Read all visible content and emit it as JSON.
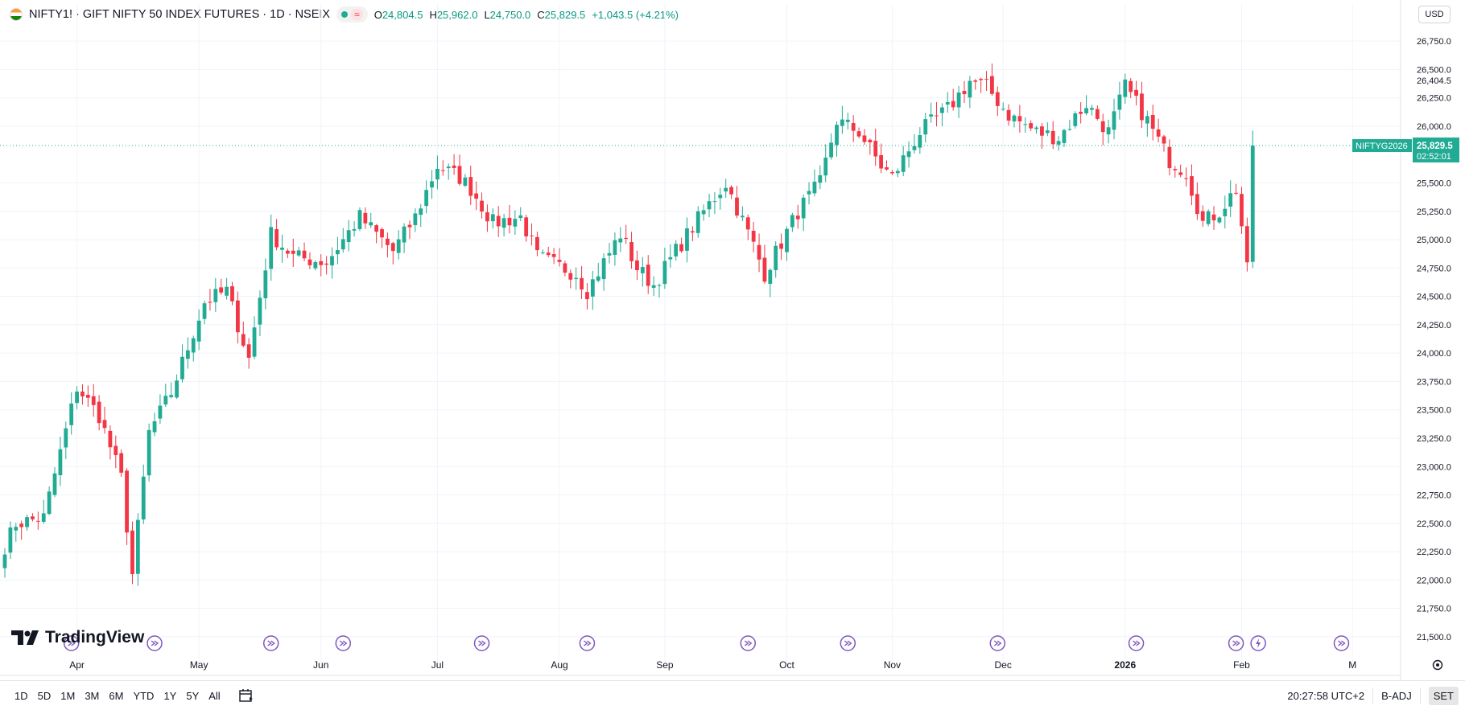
{
  "header": {
    "title": "NIFTY1! · GIFT NIFTY 50 INDEX FUTURES · 1D · NSEIX",
    "wave_symbol": "≈",
    "ohlc": {
      "o_label": "O",
      "o_value": "24,804.5",
      "h_label": "H",
      "h_value": "25,962.0",
      "l_label": "L",
      "l_value": "24,750.0",
      "c_label": "C",
      "c_value": "25,829.5",
      "change": "+1,043.5 (+4.21%)"
    },
    "currency": "USD"
  },
  "colors": {
    "up": "#22ab94",
    "down": "#f23645",
    "grid": "#f0f3fa",
    "axis_text": "#131722",
    "event": "#7e57c2",
    "price_tag": "#22ab94"
  },
  "chart_data": {
    "type": "candlestick",
    "title": "NIFTY1! · GIFT NIFTY 50 INDEX FUTURES · 1D · NSEIX",
    "ylim": [
      21400,
      26900
    ],
    "y_ticks": [
      {
        "value": 26750,
        "label": "26,750.0"
      },
      {
        "value": 26500,
        "label": "26,500.0"
      },
      {
        "value": 26250,
        "label": "26,250.0"
      },
      {
        "value": 26000,
        "label": "26,000.0"
      },
      {
        "value": 25500,
        "label": "25,500.0"
      },
      {
        "value": 25250,
        "label": "25,250.0"
      },
      {
        "value": 25000,
        "label": "25,000.0"
      },
      {
        "value": 24750,
        "label": "24,750.0"
      },
      {
        "value": 24500,
        "label": "24,500.0"
      },
      {
        "value": 24250,
        "label": "24,250.0"
      },
      {
        "value": 24000,
        "label": "24,000.0"
      },
      {
        "value": 23750,
        "label": "23,750.0"
      },
      {
        "value": 23500,
        "label": "23,500.0"
      },
      {
        "value": 23250,
        "label": "23,250.0"
      },
      {
        "value": 23000,
        "label": "23,000.0"
      },
      {
        "value": 22750,
        "label": "22,750.0"
      },
      {
        "value": 22500,
        "label": "22,500.0"
      },
      {
        "value": 22250,
        "label": "22,250.0"
      },
      {
        "value": 22000,
        "label": "22,000.0"
      },
      {
        "value": 21750,
        "label": "21,750.0"
      },
      {
        "value": 21500,
        "label": "21,500.0"
      }
    ],
    "extra_price_label": {
      "value": 26404.5,
      "label": "26,404.5"
    },
    "x_ticks": [
      {
        "index": 13,
        "label": "Apr",
        "bold": false
      },
      {
        "index": 35,
        "label": "May",
        "bold": false
      },
      {
        "index": 57,
        "label": "Jun",
        "bold": false
      },
      {
        "index": 78,
        "label": "Jul",
        "bold": false
      },
      {
        "index": 100,
        "label": "Aug",
        "bold": false
      },
      {
        "index": 119,
        "label": "Sep",
        "bold": false
      },
      {
        "index": 141,
        "label": "Oct",
        "bold": false
      },
      {
        "index": 160,
        "label": "Nov",
        "bold": false
      },
      {
        "index": 180,
        "label": "Dec",
        "bold": false
      },
      {
        "index": 202,
        "label": "2026",
        "bold": true
      },
      {
        "index": 223,
        "label": "Feb",
        "bold": false
      },
      {
        "index": 243,
        "label": "M",
        "bold": false
      }
    ],
    "last_price": {
      "value": 25829.5,
      "label": "25,829.5",
      "countdown": "02:52:01",
      "symbol_tag": "NIFTYG2026"
    },
    "event_markers": [
      {
        "index": 12,
        "kind": "dividend"
      },
      {
        "index": 27,
        "kind": "dividend"
      },
      {
        "index": 48,
        "kind": "dividend"
      },
      {
        "index": 61,
        "kind": "dividend"
      },
      {
        "index": 86,
        "kind": "dividend"
      },
      {
        "index": 105,
        "kind": "dividend"
      },
      {
        "index": 134,
        "kind": "dividend"
      },
      {
        "index": 152,
        "kind": "dividend"
      },
      {
        "index": 179,
        "kind": "dividend"
      },
      {
        "index": 204,
        "kind": "dividend"
      },
      {
        "index": 222,
        "kind": "dividend"
      },
      {
        "index": 226,
        "kind": "earnings"
      },
      {
        "index": 241,
        "kind": "dividend"
      }
    ],
    "waypoints": [
      {
        "i": 0,
        "p": 22300
      },
      {
        "i": 2,
        "p": 22500
      },
      {
        "i": 7,
        "p": 22550
      },
      {
        "i": 13,
        "p": 23700
      },
      {
        "i": 17,
        "p": 23450
      },
      {
        "i": 21,
        "p": 22900
      },
      {
        "i": 23,
        "p": 22050
      },
      {
        "i": 26,
        "p": 23300
      },
      {
        "i": 30,
        "p": 23650
      },
      {
        "i": 36,
        "p": 24450
      },
      {
        "i": 40,
        "p": 24550
      },
      {
        "i": 44,
        "p": 23950
      },
      {
        "i": 48,
        "p": 25050
      },
      {
        "i": 52,
        "p": 24850
      },
      {
        "i": 58,
        "p": 24800
      },
      {
        "i": 64,
        "p": 25200
      },
      {
        "i": 70,
        "p": 24900
      },
      {
        "i": 74,
        "p": 25200
      },
      {
        "i": 78,
        "p": 25650
      },
      {
        "i": 82,
        "p": 25550
      },
      {
        "i": 84,
        "p": 25450
      },
      {
        "i": 88,
        "p": 25150
      },
      {
        "i": 93,
        "p": 25200
      },
      {
        "i": 96,
        "p": 24850
      },
      {
        "i": 103,
        "p": 24700
      },
      {
        "i": 105,
        "p": 24550
      },
      {
        "i": 108,
        "p": 24800
      },
      {
        "i": 111,
        "p": 25050
      },
      {
        "i": 114,
        "p": 24750
      },
      {
        "i": 117,
        "p": 24600
      },
      {
        "i": 121,
        "p": 24900
      },
      {
        "i": 126,
        "p": 25250
      },
      {
        "i": 130,
        "p": 25500
      },
      {
        "i": 135,
        "p": 24950
      },
      {
        "i": 137,
        "p": 24700
      },
      {
        "i": 143,
        "p": 25250
      },
      {
        "i": 147,
        "p": 25500
      },
      {
        "i": 150,
        "p": 26050
      },
      {
        "i": 154,
        "p": 25950
      },
      {
        "i": 158,
        "p": 25650
      },
      {
        "i": 160,
        "p": 25550
      },
      {
        "i": 165,
        "p": 25950
      },
      {
        "i": 170,
        "p": 26150
      },
      {
        "i": 174,
        "p": 26400
      },
      {
        "i": 177,
        "p": 26350
      },
      {
        "i": 181,
        "p": 26100
      },
      {
        "i": 186,
        "p": 25950
      },
      {
        "i": 190,
        "p": 25900
      },
      {
        "i": 195,
        "p": 26200
      },
      {
        "i": 199,
        "p": 25950
      },
      {
        "i": 202,
        "p": 26350
      },
      {
        "i": 206,
        "p": 26050
      },
      {
        "i": 210,
        "p": 25700
      },
      {
        "i": 213,
        "p": 25600
      },
      {
        "i": 216,
        "p": 25150
      },
      {
        "i": 219,
        "p": 25250
      },
      {
        "i": 222,
        "p": 25450
      },
      {
        "i": 224,
        "p": 24800
      },
      {
        "i": 225,
        "p": 25830
      }
    ],
    "grid": true
  },
  "watermark": {
    "brand": "TradingView"
  },
  "bottom_bar": {
    "ranges": [
      "1D",
      "5D",
      "1M",
      "3M",
      "6M",
      "YTD",
      "1Y",
      "5Y",
      "All"
    ],
    "clock": "20:27:58 UTC+2",
    "adjustment": "B-ADJ",
    "session": "SET"
  }
}
